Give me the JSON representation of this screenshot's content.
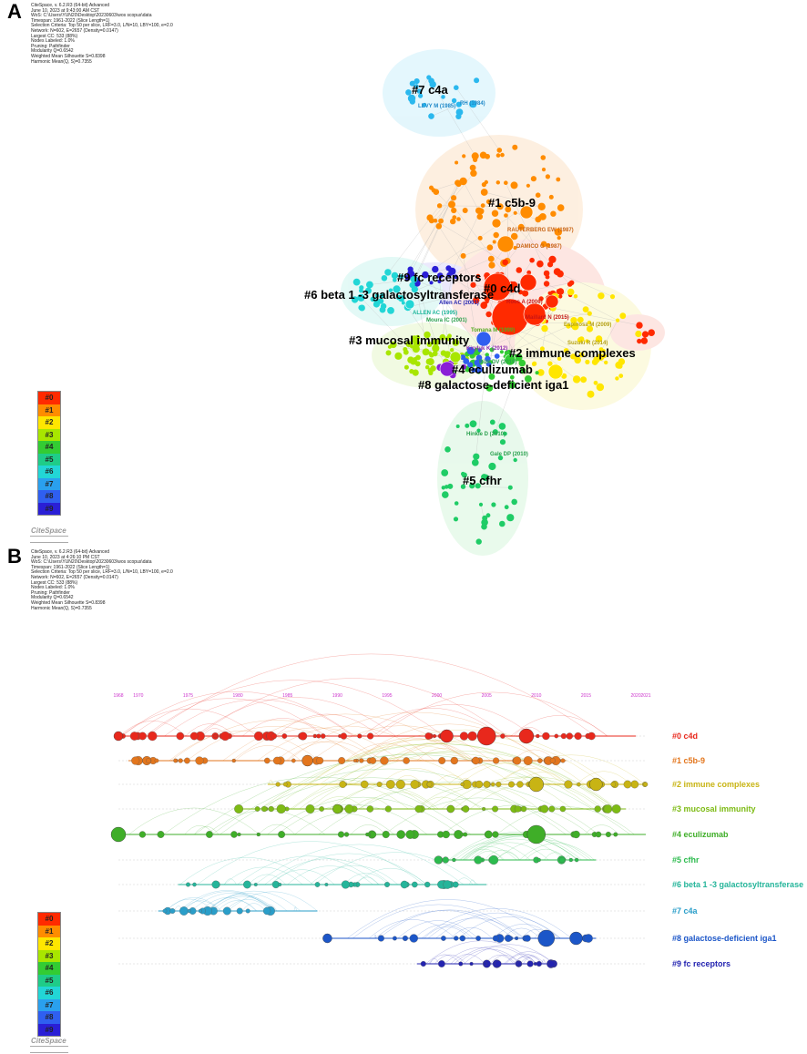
{
  "panel_a": {
    "letter": "A",
    "meta_lines": [
      "CiteSpace, v. 6.2.R3 (64-bit) Advanced",
      "June 10, 2023 at 9:43:00 AM CST",
      "WoS: C:\\Users\\YUN20\\Desktop\\20230603\\wos scopus\\data",
      "Timespan: 1961-2022 (Slice Length=1)",
      "Selection Criteria: Top 50 per slice, LRF=3.0, L/N=10, LBY=100, e=2.0",
      "Network: N=602, E=2657 (Density=0.0147)",
      "Largest CC: 533 (88%)",
      "Nodes Labeled: 1.0%",
      "Pruning: Pathfinder",
      "Modularity Q=0.6542",
      "Weighted Mean Silhouette S=0.8398",
      "Harmonic Mean(Q, S)=0.7355"
    ],
    "clusters": [
      {
        "label": "#7 c4a"
      },
      {
        "label": "#1 c5b-9"
      },
      {
        "label": "#9 fc receptors"
      },
      {
        "label": "#6 beta 1 -3 galactosyltransferase"
      },
      {
        "label": "#0 c4d"
      },
      {
        "label": "#3 mucosal immunity"
      },
      {
        "label": "#2 immune complexes"
      },
      {
        "label": "#4 eculizumab"
      },
      {
        "label": "#8 galactose-deficient iga1"
      },
      {
        "label": "#5  cfhr"
      }
    ],
    "node_labels": [
      "LEVY M (1985)",
      "RH (1984)",
      "RAUTERBERG EW (1987)",
      "DAMICO G (1987)",
      "ALLEN AC (1995)",
      "Allen AC (2001)",
      "Moura IC (2001)",
      "Tomana M (1999)",
      "Maillard N (2015)",
      "Espinosa M (2009)",
      "Roos A (2006)",
      "Suzuki R (2014)",
      "Kiryluk K (2012)",
      "Rizk DV (2019)",
      "Hinkle D (2010)",
      "Gale DP (2010)"
    ]
  },
  "panel_b": {
    "letter": "B",
    "meta_lines": [
      "CiteSpace, v. 6.2.R3 (64-bit) Advanced",
      "June 10, 2023 at 4:26:10 PM CST",
      "WoS: C:\\Users\\YUN20\\Desktop\\20230603\\wos scopus\\data",
      "Timespan: 1961-2022 (Slice Length=1)",
      "Selection Criteria: Top 50 per slice, LRF=3.0, L/N=10, LBY=100, e=2.0",
      "Network: N=602, E=2657 (Density=0.0147)",
      "Largest CC: 533 (88%)",
      "Nodes Labeled: 1.0%",
      "Pruning: Pathfinder",
      "Modularity Q=0.6542",
      "Weighted Mean Silhouette S=0.8398",
      "Harmonic Mean(Q, S)=0.7355"
    ],
    "years": [
      "1968",
      "1970",
      "1975",
      "1980",
      "1985",
      "1990",
      "1995",
      "2000",
      "2005",
      "2010",
      "2015",
      "2020",
      "2021"
    ],
    "timelines": [
      {
        "label": "#0 c4d",
        "color": "#e8281c"
      },
      {
        "label": "#1 c5b-9",
        "color": "#e3761d"
      },
      {
        "label": "#2 immune complexes",
        "color": "#c8b414"
      },
      {
        "label": "#3 mucosal immunity",
        "color": "#7dbb14"
      },
      {
        "label": "#4 eculizumab",
        "color": "#3fae28"
      },
      {
        "label": "#5  cfhr",
        "color": "#2cbb4e"
      },
      {
        "label": "#6 beta 1 -3 galactosyltransferase",
        "color": "#25b59a"
      },
      {
        "label": "#7 c4a",
        "color": "#2a9ec9"
      },
      {
        "label": "#8 galactose-deficient iga1",
        "color": "#1c56c8"
      },
      {
        "label": "#9 fc receptors",
        "color": "#2323b0"
      }
    ]
  },
  "legend": {
    "items": [
      "#0",
      "#1",
      "#2",
      "#3",
      "#4",
      "#5",
      "#6",
      "#7",
      "#8",
      "#9"
    ],
    "colors": [
      "#ff2a00",
      "#ff8c00",
      "#ffe600",
      "#a8e600",
      "#33cc33",
      "#1fcc88",
      "#22d6d6",
      "#2aa0ee",
      "#2f5ff0",
      "#2a1fd6"
    ]
  },
  "logo_text": "CiteSpace"
}
